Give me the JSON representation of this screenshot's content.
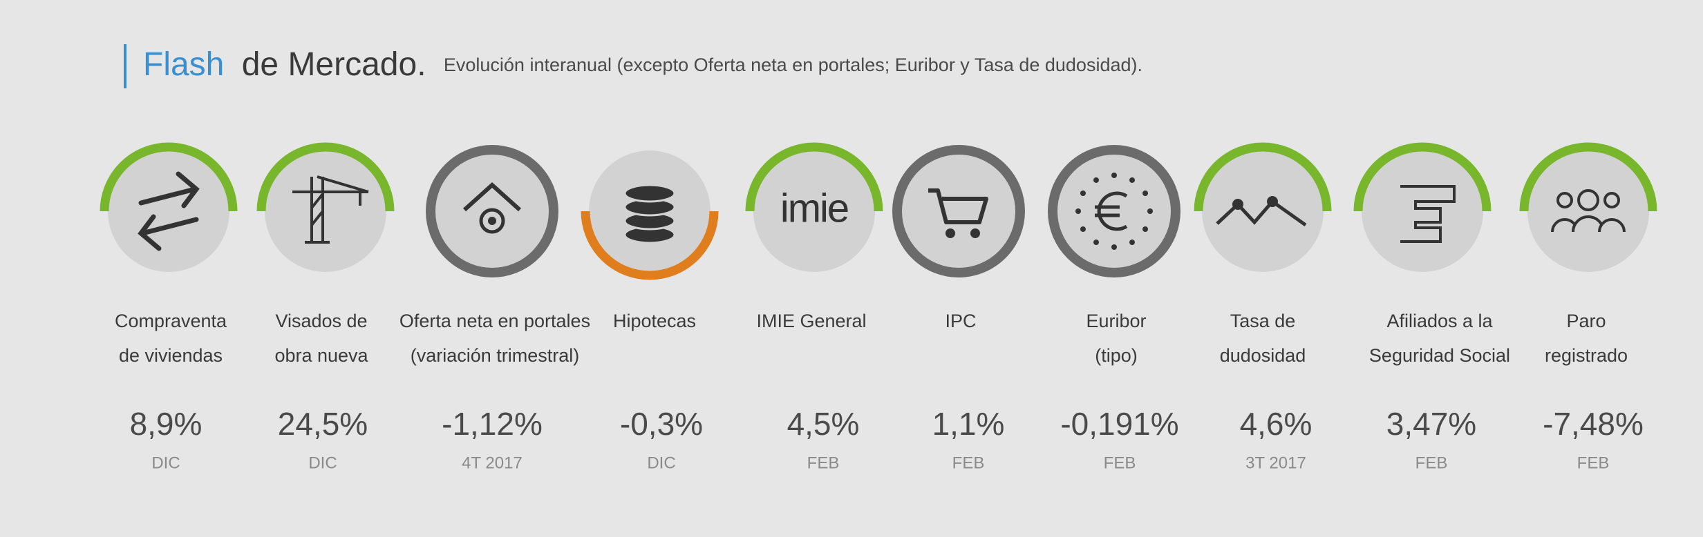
{
  "header": {
    "title_highlight": "Flash",
    "title": "de Mercado.",
    "subtitle": "Evolución interanual (excepto Oferta neta en portales; Euribor y Tasa de dudosidad)."
  },
  "items": [
    {
      "label": [
        "Compraventa",
        "de viviendas"
      ],
      "value": "8,9%",
      "period": "DIC",
      "ring": "top",
      "ring_color": "#78b62c"
    },
    {
      "label": [
        "Visados de",
        "obra nueva"
      ],
      "value": "24,5%",
      "period": "DIC",
      "ring": "top",
      "ring_color": "#78b62c"
    },
    {
      "label": [
        "Oferta neta en portales",
        "(variación trimestral)"
      ],
      "value": "-1,12%",
      "period": "4T 2017",
      "ring": "full",
      "ring_color": "#6b6b6b"
    },
    {
      "label": [
        "Hipotecas"
      ],
      "value": "-0,3%",
      "period": "DIC",
      "ring": "bottom",
      "ring_color": "#e07d1c"
    },
    {
      "label": [
        "IMIE General"
      ],
      "value": "4,5%",
      "period": "FEB",
      "ring": "top",
      "ring_color": "#78b62c",
      "logo": "imie"
    },
    {
      "label": [
        "IPC"
      ],
      "value": "1,1%",
      "period": "FEB",
      "ring": "full",
      "ring_color": "#6b6b6b"
    },
    {
      "label": [
        "Euribor",
        "(tipo)"
      ],
      "value": "-0,191%",
      "period": "FEB",
      "ring": "full",
      "ring_color": "#6b6b6b"
    },
    {
      "label": [
        "Tasa de",
        "dudosidad"
      ],
      "value": "4,6%",
      "period": "3T 2017",
      "ring": "top",
      "ring_color": "#78b62c"
    },
    {
      "label": [
        "Afiliados a la",
        "Seguridad Social"
      ],
      "value": "3,47%",
      "period": "FEB",
      "ring": "top",
      "ring_color": "#78b62c"
    },
    {
      "label": [
        "Paro",
        "registrado"
      ],
      "value": "-7,48%",
      "period": "FEB",
      "ring": "top",
      "ring_color": "#78b62c"
    }
  ]
}
